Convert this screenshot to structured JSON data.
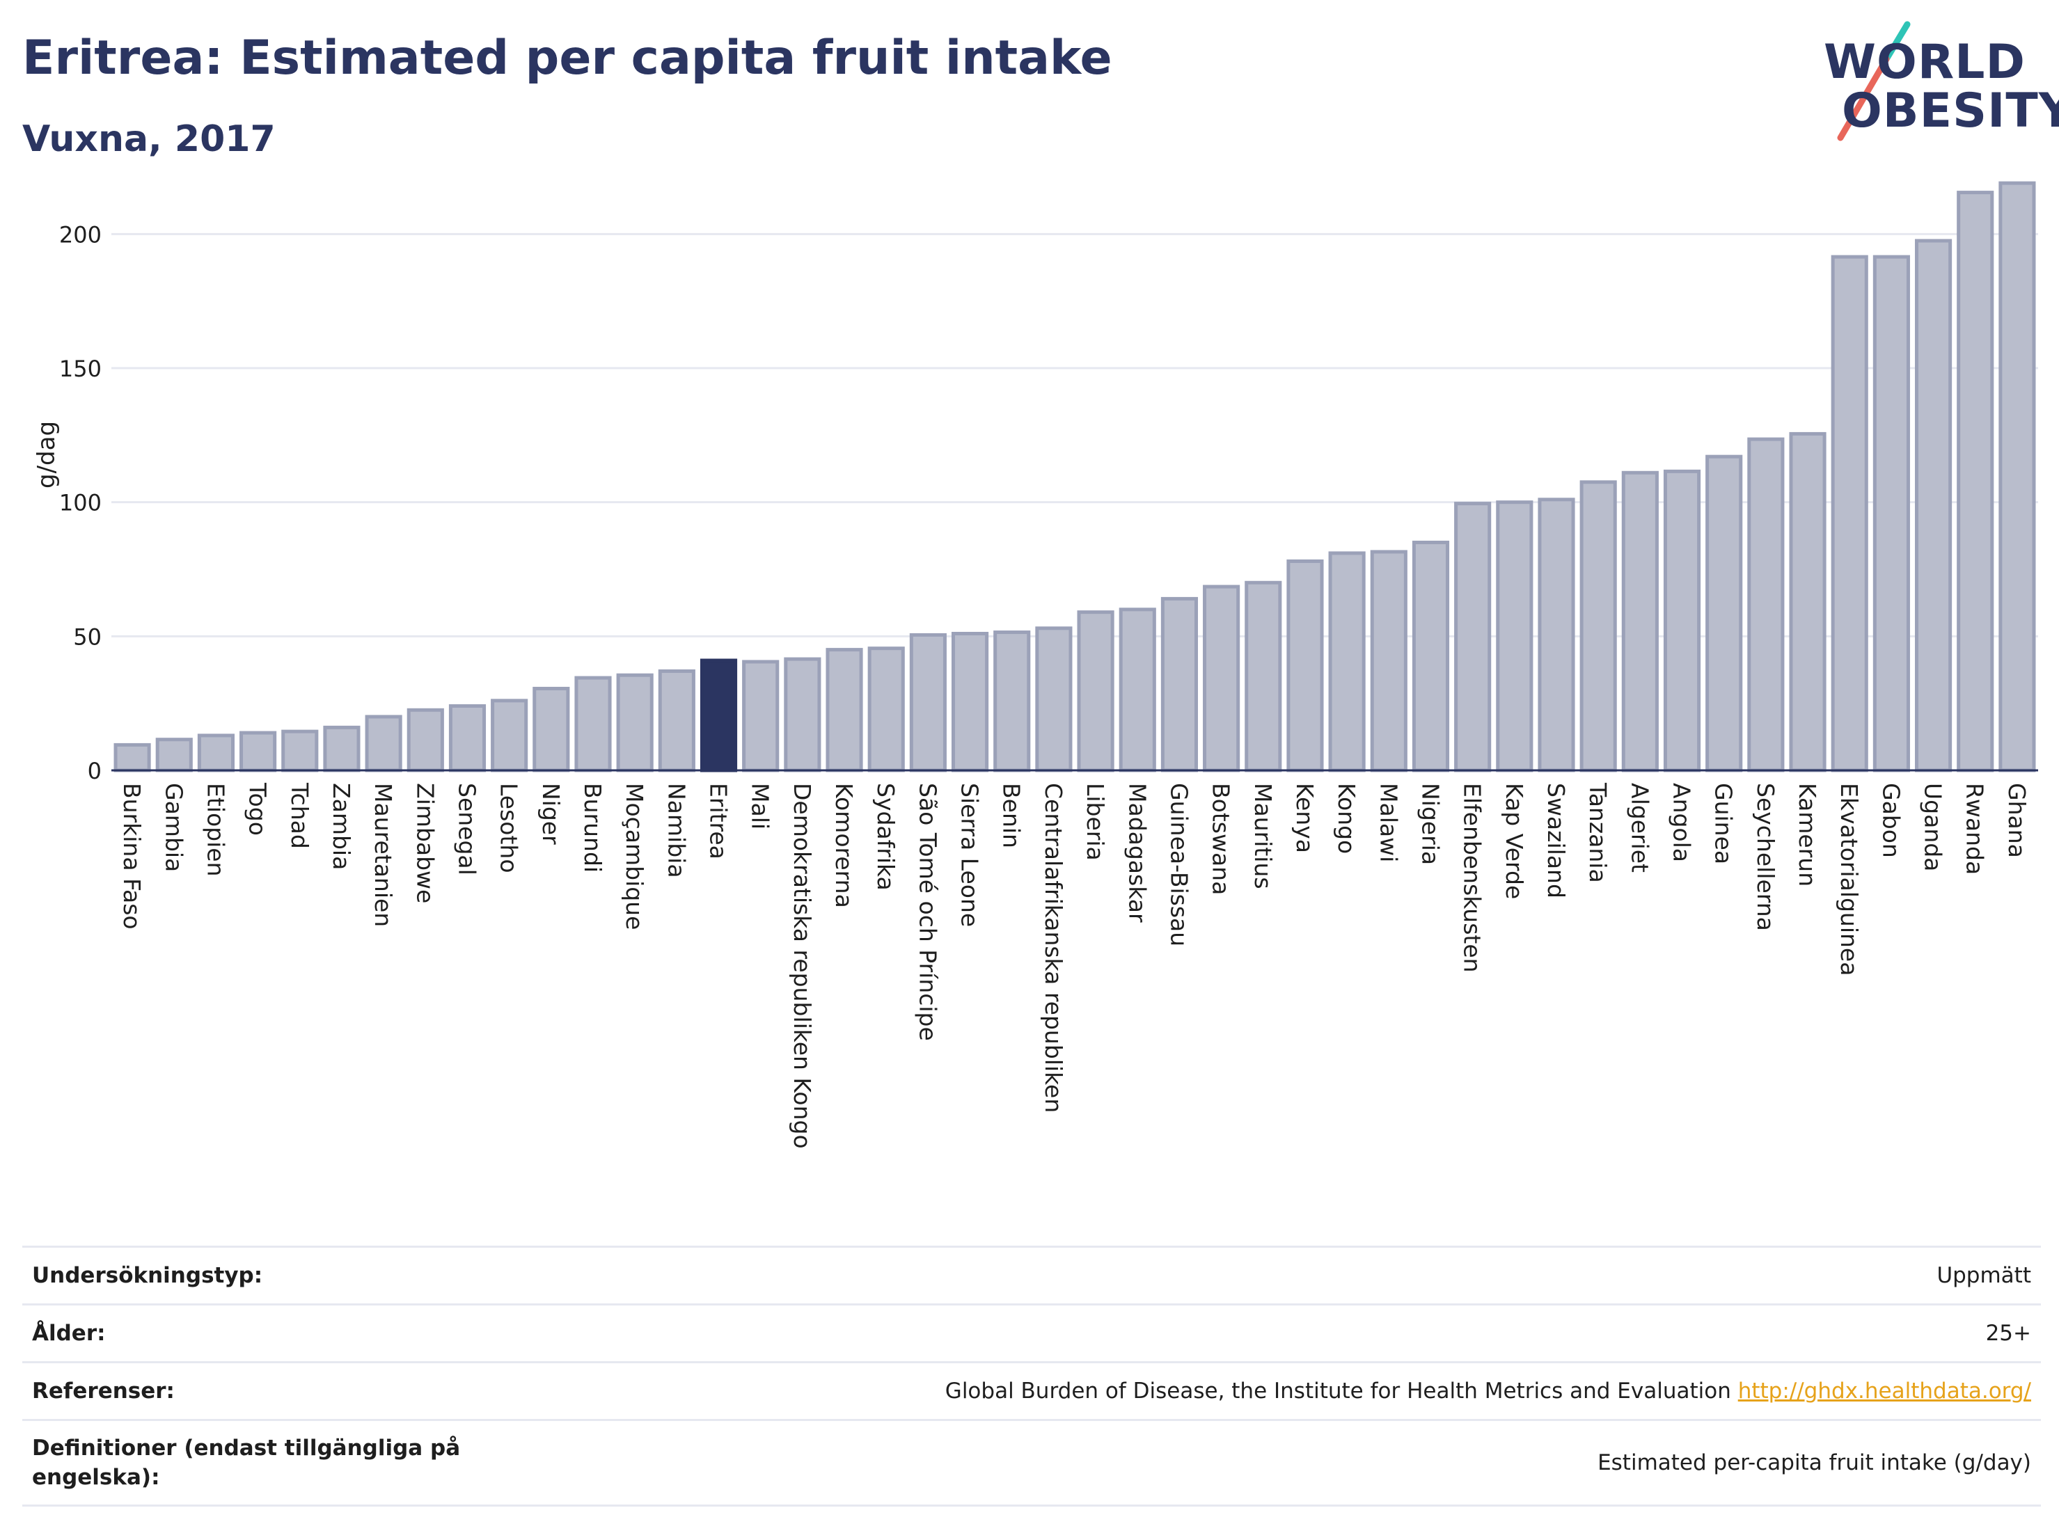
{
  "header": {
    "title": "Eritrea: Estimated per capita fruit intake",
    "subtitle": "Vuxna, 2017"
  },
  "logo": {
    "line1": "WORLD",
    "line2": "OBESITY"
  },
  "colors": {
    "bar": "#b9bdcc",
    "bar_border": "#9ba1b8",
    "highlight": "#2b3561",
    "grid": "#e6e8f0",
    "axis": "#2b3561",
    "accent_teal": "#2ec4b6",
    "accent_red": "#e8665a"
  },
  "chart_data": {
    "type": "bar",
    "ylabel": "g/dag",
    "ylim": [
      0,
      225
    ],
    "yticks": [
      0,
      50,
      100,
      150,
      200
    ],
    "highlight": "Eritrea",
    "categories": [
      "Burkina Faso",
      "Gambia",
      "Etiopien",
      "Togo",
      "Tchad",
      "Zambia",
      "Mauretanien",
      "Zimbabwe",
      "Senegal",
      "Lesotho",
      "Niger",
      "Burundi",
      "Moçambique",
      "Namibia",
      "Eritrea",
      "Mali",
      "Demokratiska republiken Kongo",
      "Komorerna",
      "Sydafrika",
      "São Tomé och Príncipe",
      "Sierra Leone",
      "Benin",
      "Centralafrikanska republiken",
      "Liberia",
      "Madagaskar",
      "Guinea-Bissau",
      "Botswana",
      "Mauritius",
      "Kenya",
      "Kongo",
      "Malawi",
      "Nigeria",
      "Elfenbenskusten",
      "Kap Verde",
      "Swaziland",
      "Tanzania",
      "Algeriet",
      "Angola",
      "Guinea",
      "Seychellerna",
      "Kamerun",
      "Ekvatorialguinea",
      "Gabon",
      "Uganda",
      "Rwanda",
      "Ghana"
    ],
    "values": [
      9.5,
      11.5,
      13,
      14,
      14.5,
      16,
      20,
      22.5,
      24,
      26,
      30.5,
      34.5,
      35.5,
      37,
      41,
      40.5,
      41.5,
      45,
      45.5,
      50.5,
      51,
      51.5,
      53,
      59,
      60,
      64,
      68.5,
      70,
      78,
      81,
      81.5,
      85,
      99.5,
      100,
      101,
      107.5,
      111,
      111.5,
      117,
      123.5,
      125.5,
      191.5,
      191.5,
      197.5,
      215.5,
      219
    ]
  },
  "info_rows": [
    {
      "label": "Undersökningstyp:",
      "value": "Uppmätt"
    },
    {
      "label": "Ålder:",
      "value": "25+"
    },
    {
      "label": "Referenser:",
      "value": "Global Burden of Disease, the Institute for Health Metrics and Evaluation",
      "link": "http://ghdx.healthdata.org/"
    },
    {
      "label": "Definitioner (endast tillgängliga på engelska):",
      "value": "Estimated per-capita fruit intake (g/day)"
    }
  ]
}
